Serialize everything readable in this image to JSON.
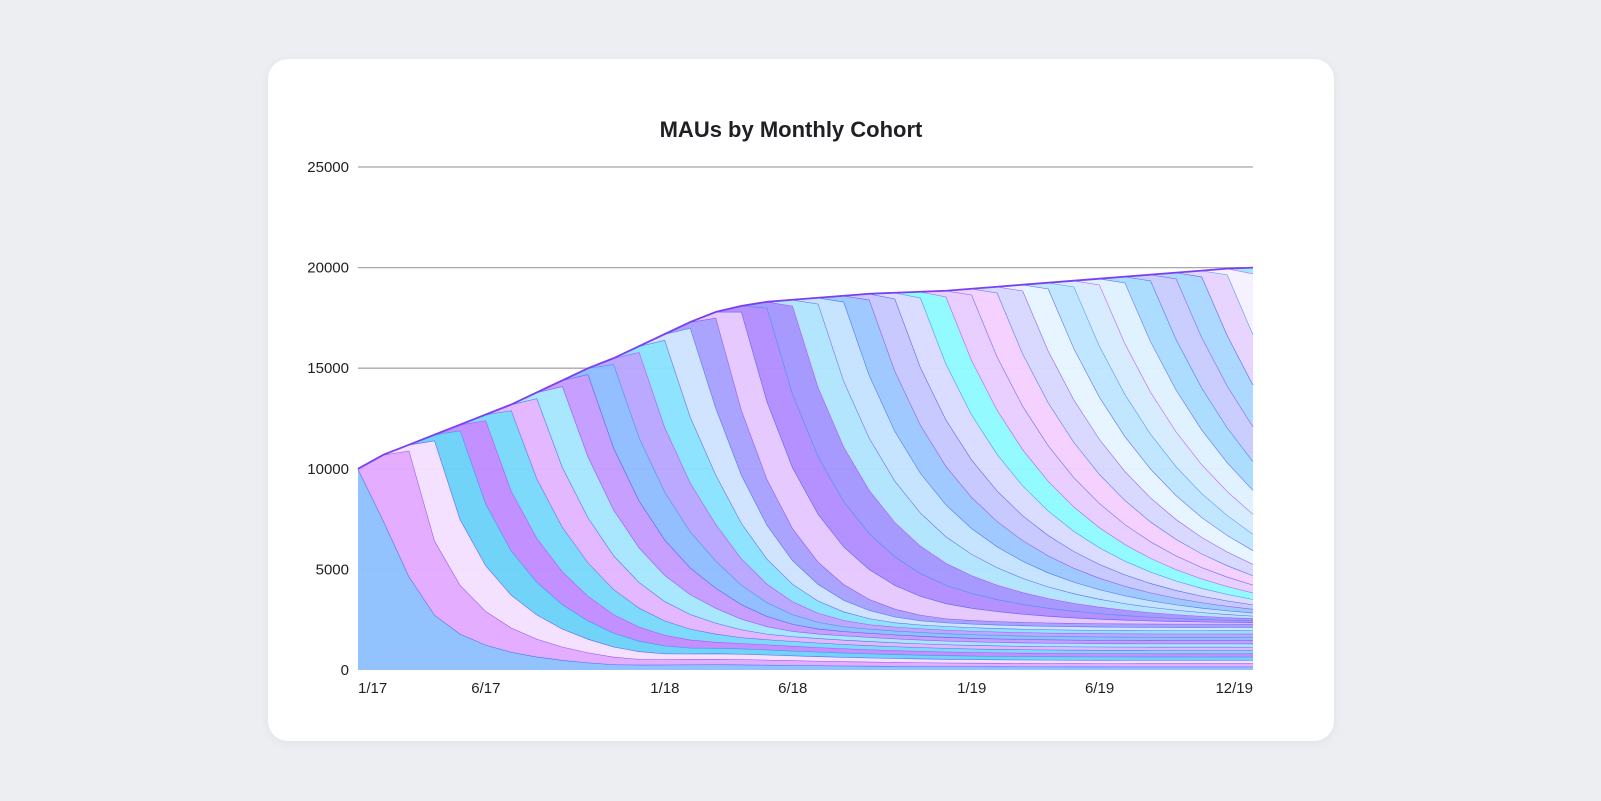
{
  "chart_data": {
    "type": "area",
    "stacked": true,
    "title": "MAUs by Monthly Cohort",
    "xlabel": "",
    "ylabel": "",
    "ylim": [
      0,
      25000
    ],
    "yticks": [
      0,
      5000,
      10000,
      15000,
      20000,
      25000
    ],
    "ytick_labels": [
      "0",
      "5000",
      "10000",
      "15000",
      "20000",
      "25000"
    ],
    "x_start": "1/17",
    "x_end": "12/19",
    "months": [
      "1/17",
      "2/17",
      "3/17",
      "4/17",
      "5/17",
      "6/17",
      "7/17",
      "8/17",
      "9/17",
      "10/17",
      "11/17",
      "12/17",
      "1/18",
      "2/18",
      "3/18",
      "4/18",
      "5/18",
      "6/18",
      "7/18",
      "8/18",
      "9/18",
      "10/18",
      "11/18",
      "12/18",
      "1/19",
      "2/19",
      "3/19",
      "4/19",
      "5/19",
      "6/19",
      "7/19",
      "8/19",
      "9/19",
      "10/19",
      "11/19",
      "12/19"
    ],
    "xticks": [
      {
        "month": "1/17",
        "label": "1/17"
      },
      {
        "month": "6/17",
        "label": "6/17"
      },
      {
        "month": "1/18",
        "label": "1/18"
      },
      {
        "month": "6/18",
        "label": "6/18"
      },
      {
        "month": "1/19",
        "label": "1/19"
      },
      {
        "month": "6/19",
        "label": "6/19"
      },
      {
        "month": "12/19",
        "label": "12/19"
      }
    ],
    "total_mau": [
      10000,
      10700,
      11200,
      11700,
      12200,
      12700,
      13200,
      13800,
      14400,
      15000,
      15500,
      16100,
      16700,
      17300,
      17800,
      18100,
      18300,
      18400,
      18500,
      18600,
      18700,
      18750,
      18800,
      18850,
      18950,
      19050,
      19150,
      19250,
      19350,
      19450,
      19550,
      19650,
      19750,
      19850,
      19950,
      20000
    ],
    "cohort_new_users": 10000,
    "legend": "none",
    "grid": true,
    "colors": [
      "#8ec1ff",
      "#e3aaff",
      "#f4e0ff",
      "#6bd1f7",
      "#c08bff",
      "#79d9fb",
      "#e2b5ff",
      "#a6e6ff",
      "#c49bff",
      "#8fbbff",
      "#b7a5ff",
      "#89e2ff",
      "#cfe3ff",
      "#a7a0ff",
      "#e5c8ff",
      "#b28cff",
      "#a296ff",
      "#b0e4ff",
      "#c4e3ff",
      "#9cc8ff",
      "#c6c8ff",
      "#d9dcff",
      "#8ffaff",
      "#e7cdff",
      "#f4cfff",
      "#d7d7ff",
      "#e5f5ff",
      "#bde6ff",
      "#d6ebff",
      "#dff0ff",
      "#a9dcff",
      "#c8ccff",
      "#aad6ff",
      "#e6d3ff",
      "#f6f0ff",
      "#9de8ff"
    ]
  }
}
